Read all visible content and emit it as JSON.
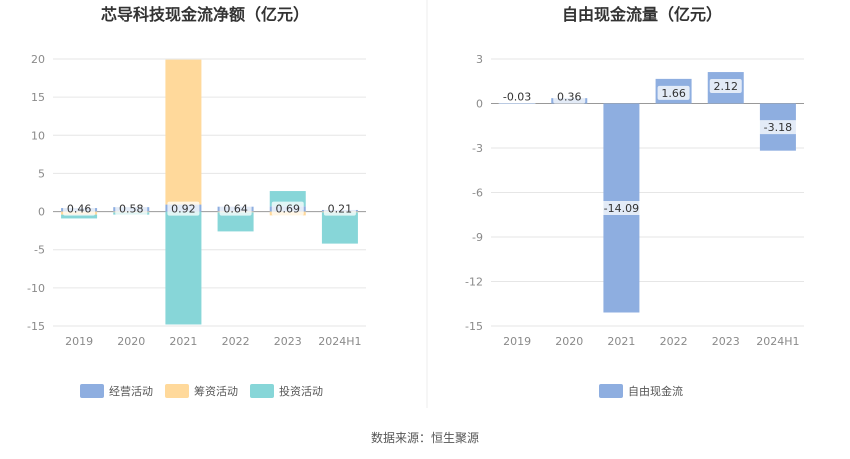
{
  "source": "数据来源：恒生聚源",
  "chart_data": [
    {
      "type": "bar",
      "stacked": true,
      "title": "芯导科技现金流净额（亿元）",
      "categories": [
        "2019",
        "2020",
        "2021",
        "2022",
        "2023",
        "2024H1"
      ],
      "y_ticks": [
        "20",
        "15",
        "10",
        "5",
        "0",
        "-5",
        "-10",
        "-15"
      ],
      "ylim": [
        -15,
        20
      ],
      "grid": true,
      "legend_position": "bottom",
      "series": [
        {
          "name": "经营活动",
          "color": "#8eaee0",
          "values": [
            0.46,
            0.58,
            0.92,
            0.64,
            0.69,
            0.21
          ],
          "labels": [
            "0.46",
            "0.58",
            "0.92",
            "0.64",
            "0.69",
            "0.21"
          ]
        },
        {
          "name": "筹资活动",
          "color": "#ffd99b",
          "values": [
            -0.4,
            -0.1,
            19.0,
            -0.1,
            -0.5,
            -0.1
          ]
        },
        {
          "name": "投资活动",
          "color": "#87d6d8",
          "values": [
            -0.5,
            -0.3,
            -14.8,
            -2.5,
            2.0,
            -4.1
          ]
        }
      ]
    },
    {
      "type": "bar",
      "title": "自由现金流量（亿元）",
      "categories": [
        "2019",
        "2020",
        "2021",
        "2022",
        "2023",
        "2024H1"
      ],
      "y_ticks": [
        "3",
        "0",
        "-3",
        "-6",
        "-9",
        "-12",
        "-15"
      ],
      "ylim": [
        -15,
        3
      ],
      "grid": true,
      "legend_position": "bottom",
      "series": [
        {
          "name": "自由现金流",
          "color": "#8eaee0",
          "values": [
            -0.03,
            0.36,
            -14.09,
            1.66,
            2.12,
            -3.18
          ],
          "labels": [
            "-0.03",
            "0.36",
            "-14.09",
            "1.66",
            "2.12",
            "-3.18"
          ]
        }
      ]
    }
  ]
}
